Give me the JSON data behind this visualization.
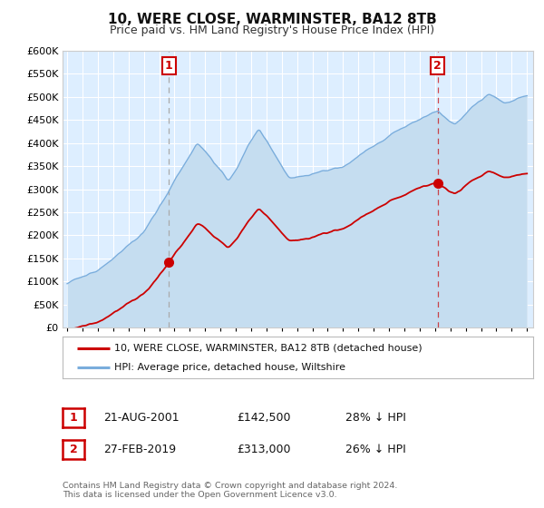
{
  "title": "10, WERE CLOSE, WARMINSTER, BA12 8TB",
  "subtitle": "Price paid vs. HM Land Registry's House Price Index (HPI)",
  "legend_line1": "10, WERE CLOSE, WARMINSTER, BA12 8TB (detached house)",
  "legend_line2": "HPI: Average price, detached house, Wiltshire",
  "footer": "Contains HM Land Registry data © Crown copyright and database right 2024.\nThis data is licensed under the Open Government Licence v3.0.",
  "annotation1_date": "21-AUG-2001",
  "annotation1_price": "£142,500",
  "annotation1_hpi": "28% ↓ HPI",
  "annotation2_date": "27-FEB-2019",
  "annotation2_price": "£313,000",
  "annotation2_hpi": "26% ↓ HPI",
  "sale1_x": 2001.64,
  "sale1_y": 142500,
  "sale2_x": 2019.16,
  "sale2_y": 313000,
  "red_line_color": "#cc0000",
  "blue_line_color": "#7aaddc",
  "blue_fill_color": "#c5ddf0",
  "fig_bg_color": "#ffffff",
  "plot_bg_color": "#ddeeff",
  "grid_color": "#ffffff",
  "ylim": [
    0,
    600000
  ],
  "yticks": [
    0,
    50000,
    100000,
    150000,
    200000,
    250000,
    300000,
    350000,
    400000,
    450000,
    500000,
    550000,
    600000
  ],
  "xlim_start": 1994.7,
  "xlim_end": 2025.4
}
